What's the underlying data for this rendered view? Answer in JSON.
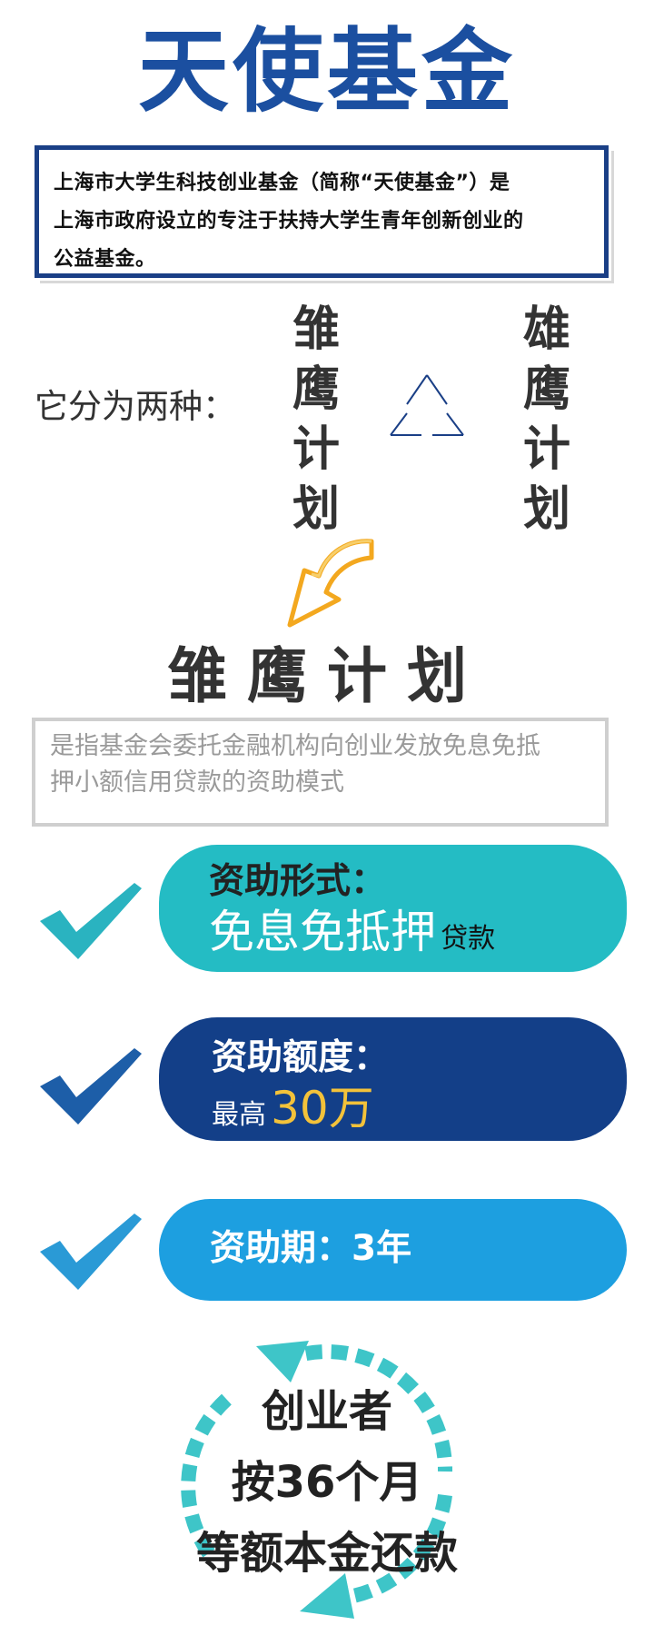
{
  "title": "天使基金",
  "intro": {
    "line1": "上海市大学生科技创业基金（简称“天使基金”）是",
    "line2": "上海市政府设立的专注于扶持大学生青年创新创业的",
    "line3": "公益基金。"
  },
  "types": {
    "label": "它分为两种：",
    "left": [
      "雏",
      "鹰",
      "计",
      "划"
    ],
    "right": [
      "雄",
      "鹰",
      "计",
      "划"
    ]
  },
  "subtitle": "雏鹰计划",
  "description": {
    "line1": "是指基金会委托金融机构向创业发放免息免抵",
    "line2": "押小额信用贷款的资助模式"
  },
  "items": [
    {
      "heading": "资助形式：",
      "value_main": "免息免抵押",
      "value_suffix": "贷款"
    },
    {
      "heading": "资助额度：",
      "value_prefix": "最高",
      "value_main": "30万"
    },
    {
      "heading": "资助期：3年"
    }
  ],
  "repayment": {
    "line1": "创业者",
    "line2": "按36个月",
    "line3": "等额本金还款"
  },
  "colors": {
    "title_blue": "#1b4fa0",
    "box_navy": "#1a3f86",
    "teal": "#24bcc4",
    "navy": "#133f88",
    "sky": "#1d9fe0",
    "gold": "#f3c23a",
    "arrow_orange": "#f3a81f"
  },
  "icons": [
    "triangle-icon",
    "curved-arrow-icon",
    "checkmark-icon",
    "cycle-arrows-icon"
  ]
}
